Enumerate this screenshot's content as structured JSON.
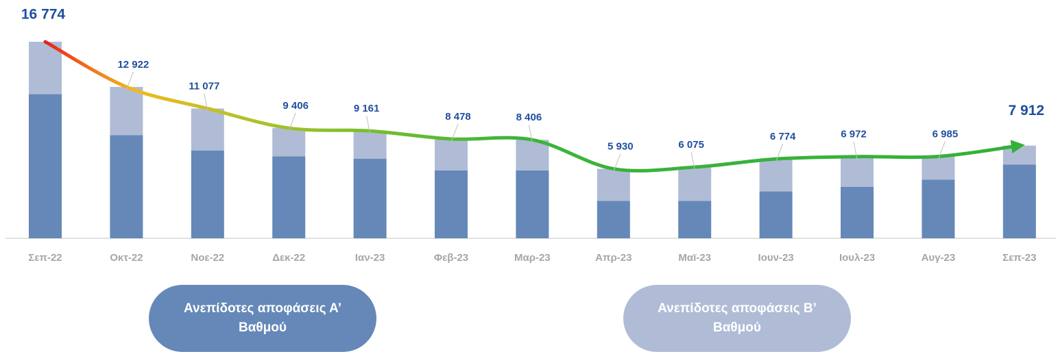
{
  "chart_data": {
    "type": "bar",
    "stacked": true,
    "categories": [
      "Σεπ-22",
      "Οκτ-22",
      "Νοε-22",
      "Δεκ-22",
      "Ιαν-23",
      "Φεβ-23",
      "Μαρ-23",
      "Απρ-23",
      "Μαϊ-23",
      "Ιουν-23",
      "Ιουλ-23",
      "Αυγ-23",
      "Σεπ-23"
    ],
    "series": [
      {
        "name": "Ανεπίδοτες αποφάσεις Α’ Βαθμού",
        "color": "#6588b8",
        "values": [
          12300,
          8800,
          7500,
          7000,
          6800,
          5800,
          5800,
          3200,
          3200,
          4000,
          4400,
          5000,
          6300
        ]
      },
      {
        "name": "Ανεπίδοτες αποφάσεις Β’ Βαθμού",
        "color": "#b0bcd6",
        "values": [
          4474,
          4122,
          3577,
          2406,
          2361,
          2678,
          2606,
          2730,
          2875,
          2774,
          2572,
          1985,
          1612
        ]
      }
    ],
    "totals": {
      "values": [
        16774,
        12922,
        11077,
        9406,
        9161,
        8478,
        8406,
        5930,
        6075,
        6774,
        6972,
        6985,
        7912
      ],
      "value_labels": [
        "16 774",
        "12 922",
        "11 077",
        "9 406",
        "9 161",
        "8 478",
        "8 406",
        "5 930",
        "6 075",
        "6 774",
        "6 972",
        "6 985",
        "7 912"
      ]
    }
  }
}
